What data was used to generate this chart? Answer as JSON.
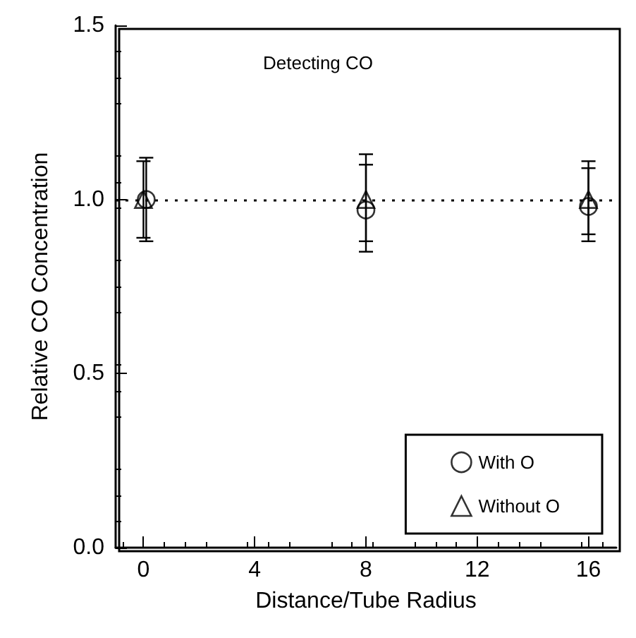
{
  "chart_data": {
    "type": "scatter",
    "xlabel": "Distance/Tube Radius",
    "ylabel": "Relative CO Concentration",
    "annotations": [
      "Detecting CO"
    ],
    "x": [
      0,
      8,
      16
    ],
    "series": [
      {
        "name": "With O",
        "color": "#000000",
        "marker": "circle",
        "x": [
          0.1,
          8,
          16
        ],
        "values": [
          1.0,
          0.97,
          0.98
        ],
        "errors": [
          0.12,
          [
            0.85,
            1.13
          ],
          [
            0.88,
            1.11
          ]
        ]
      },
      {
        "name": "Without O",
        "color": "#000000",
        "marker": "triangle",
        "values": [
          1.0,
          1.0,
          1.0
        ],
        "errors": [
          0.11,
          [
            0.88,
            1.1
          ],
          [
            0.9,
            1.09
          ]
        ]
      }
    ],
    "xlim": [
      -1,
      17
    ],
    "xticks": [
      0,
      4,
      8,
      12,
      16
    ],
    "ylim": [
      0,
      1.5
    ],
    "yticks": [
      {
        "value": 0,
        "label": "0.0"
      },
      {
        "value": 0.5,
        "label": "0.5"
      },
      {
        "value": 1,
        "label": "1.0"
      },
      {
        "value": 1.5,
        "label": "1.5"
      }
    ],
    "ref_lines": [
      {
        "axis": "y",
        "value": 1,
        "line_style": "dotted",
        "color": "#000000"
      }
    ],
    "legend": "bottom right",
    "grid": false
  }
}
